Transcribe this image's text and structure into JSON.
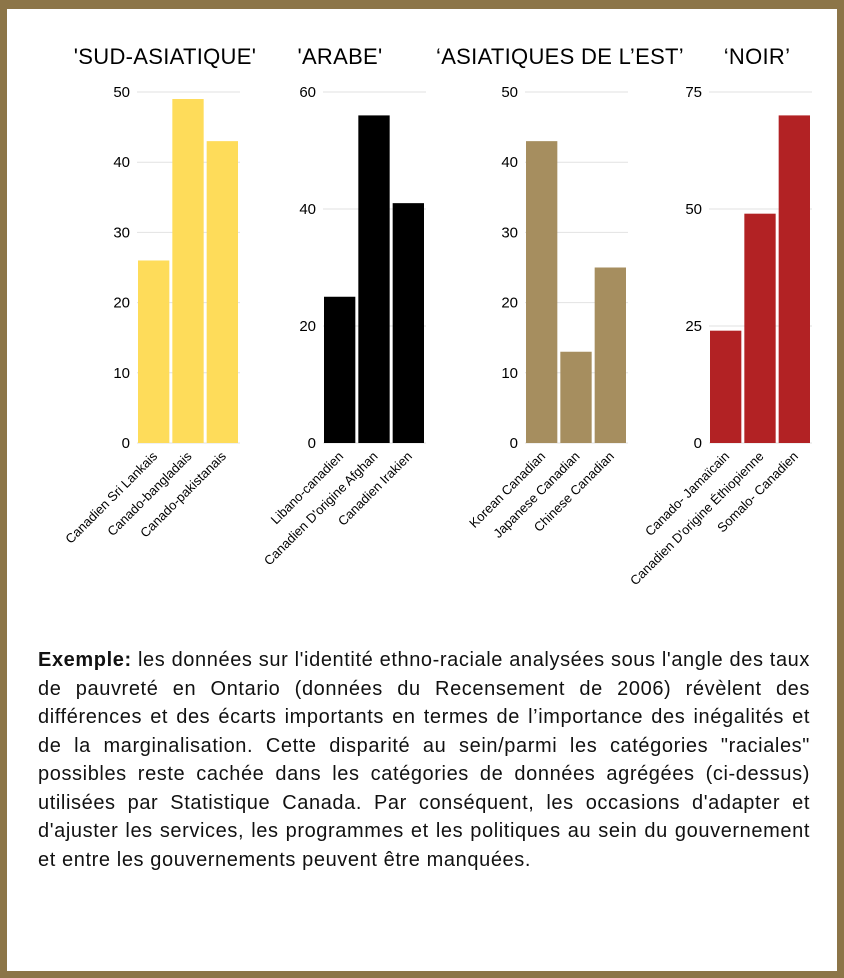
{
  "chart_data": [
    {
      "type": "bar",
      "title": "'SUD-ASIATIQUE'",
      "categories": [
        "Canadien Sri Lankais",
        "Canado-bangladais",
        "Canado-pakistanais"
      ],
      "values": [
        26,
        49,
        43
      ],
      "color": "#fedc5a",
      "ylim": [
        0,
        50
      ],
      "yticks": [
        0,
        10,
        20,
        30,
        40,
        50
      ],
      "grid": true
    },
    {
      "type": "bar",
      "title": "'ARABE'",
      "categories": [
        "Libano-canadien",
        "Canadien D'origine Afghan",
        "Canadien Irakien"
      ],
      "values": [
        25,
        56,
        41
      ],
      "color": "#000000",
      "ylim": [
        0,
        60
      ],
      "yticks": [
        0,
        20,
        40,
        60
      ],
      "grid": true
    },
    {
      "type": "bar",
      "title": "‘ASIATIQUES DE L’EST’",
      "categories": [
        "Korean Canadian",
        "Japanese Canadian",
        "Chinese Canadian"
      ],
      "values": [
        43,
        13,
        25
      ],
      "color": "#a68e5f",
      "ylim": [
        0,
        50
      ],
      "yticks": [
        0,
        10,
        20,
        30,
        40,
        50
      ],
      "grid": true
    },
    {
      "type": "bar",
      "title": "‘NOIR’",
      "categories": [
        "Canado- Jamaïcain",
        "Canadien D'origine Éthiopienne",
        "Somalo- Canadien"
      ],
      "values": [
        24,
        49,
        70
      ],
      "color": "#b22224",
      "ylim": [
        0,
        75
      ],
      "yticks": [
        0,
        25,
        50,
        75
      ],
      "grid": true
    }
  ],
  "caption": {
    "lead": "Exemple:",
    "body": " les données sur l'identité ethno-raciale analysées sous l'angle des taux de pauvreté en Ontario (données du Recensement de 2006) révèlent des différences et des écarts importants en termes de l’importance des inégalités et de la marginalisation. Cette disparité au sein/parmi les catégories \"raciales\" possibles reste cachée dans les catégories de données agrégées (ci-dessus) utilisées par Statistique Canada. Par conséquent, les occasions d'adapter et d'ajuster les services, les programmes et les politiques au sein du gouvernement et entre les gouvernements peuvent être manquées."
  }
}
